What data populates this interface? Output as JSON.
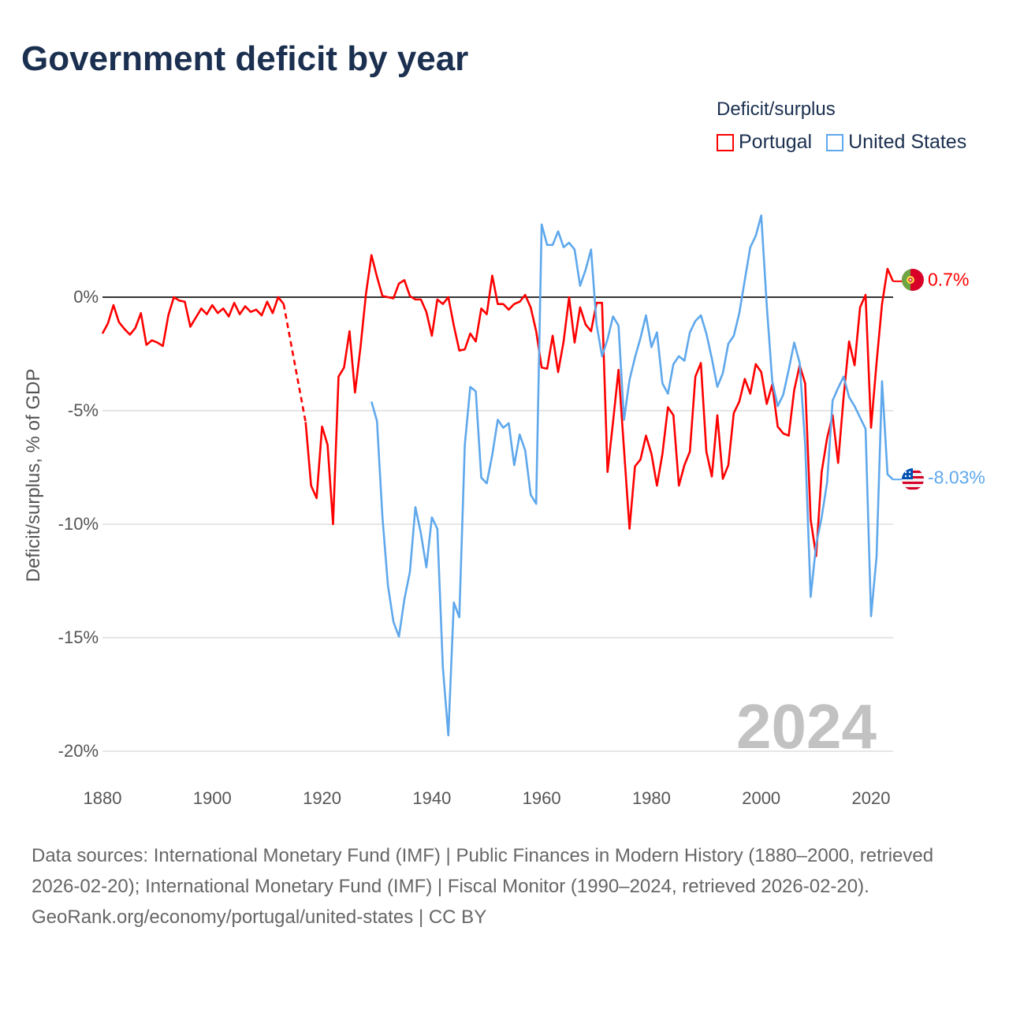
{
  "title": "Government deficit by year",
  "legend": {
    "title": "Deficit/surplus",
    "items": [
      {
        "label": "Portugal",
        "color": "#ff0000"
      },
      {
        "label": "United States",
        "color": "#5fa8ec"
      }
    ]
  },
  "watermark_year": "2024",
  "end_labels": {
    "portugal": "0.7%",
    "united_states": "-8.03%"
  },
  "footer": {
    "sources": "Data sources: International Monetary Fund (IMF) | Public Finances in Modern History (1880–2000, retrieved 2026-02-20); International Monetary Fund (IMF) | Fiscal Monitor (1990–2024, retrieved 2026-02-20).",
    "credit": "GeoRank.org/economy/portugal/united-states | CC BY"
  },
  "chart_data": {
    "type": "line",
    "title": "Government deficit by year",
    "xlabel": "",
    "ylabel": "Deficit/surplus, % of GDP",
    "xlim": [
      1880,
      2024
    ],
    "ylim": [
      -20,
      3.6
    ],
    "x_ticks": [
      1880,
      1900,
      1920,
      1940,
      1960,
      1980,
      2000,
      2020
    ],
    "x_tick_labels": [
      "1880",
      "1900",
      "1920",
      "1940",
      "1960",
      "1980",
      "2000",
      "2020"
    ],
    "y_ticks": [
      0,
      -5,
      -10,
      -15,
      -20
    ],
    "y_tick_labels": [
      "0%",
      "-5%",
      "-10%",
      "-15%",
      "-20%"
    ],
    "grid": true,
    "legend_position": "top-right",
    "series": [
      {
        "name": "Portugal",
        "color": "#ff0000",
        "start_year": 1880,
        "values": [
          -1.6,
          -1.15,
          -0.35,
          -1.1,
          -1.4,
          -1.65,
          -1.35,
          -0.7,
          -2.1,
          -1.9,
          -2.0,
          -2.15,
          -0.8,
          0,
          -0.15,
          -0.2,
          -1.3,
          -0.9,
          -0.5,
          -0.75,
          -0.35,
          -0.7,
          -0.5,
          -0.85,
          -0.25,
          -0.75,
          -0.4,
          -0.65,
          -0.55,
          -0.8,
          -0.2,
          -0.7,
          0,
          -0.3,
          null,
          null,
          null,
          -5.5,
          -8.3,
          -8.85,
          -5.7,
          -6.5,
          -10.0,
          -3.5,
          -3.1,
          -1.5,
          -4.2,
          -2.2,
          0.15,
          1.85,
          0.9,
          0.05,
          0,
          -0.05,
          0.6,
          0.75,
          0.05,
          -0.1,
          -0.1,
          -0.65,
          -1.7,
          -0.1,
          -0.3,
          0,
          -1.25,
          -2.35,
          -2.3,
          -1.6,
          -1.95,
          -0.5,
          -0.75,
          0.95,
          -0.3,
          -0.3,
          -0.55,
          -0.3,
          -0.2,
          0.1,
          -0.45,
          -1.5,
          -3.1,
          -3.15,
          -1.7,
          -3.3,
          -1.95,
          0,
          -2.0,
          -0.45,
          -1.2,
          -1.5,
          -0.25,
          -0.25,
          -7.7,
          -5.5,
          -3.2,
          -6.7,
          -10.2,
          -7.45,
          -7.15,
          -6.1,
          -6.9,
          -8.3,
          -6.9,
          -4.85,
          -5.2,
          -8.3,
          -7.4,
          -6.8,
          -3.5,
          -2.9,
          -6.8,
          -7.9,
          -5.2,
          -8.0,
          -7.4,
          -5.1,
          -4.6,
          -3.6,
          -4.25,
          -2.95,
          -3.3,
          -4.7,
          -3.85,
          -5.7,
          -6.0,
          -6.1,
          -4.1,
          -3.0,
          -3.8,
          -9.8,
          -11.4,
          -7.7,
          -6.2,
          -5.2,
          -7.3,
          -4.4,
          -1.95,
          -3.0,
          -0.45,
          0.1,
          -5.75,
          -2.9,
          -0.3,
          1.25,
          0.7
        ]
      },
      {
        "name": "United States",
        "color": "#5fa8ec",
        "start_year": 1929,
        "values": [
          -4.6,
          -5.45,
          -9.7,
          -12.7,
          -14.3,
          -14.95,
          -13.3,
          -12.1,
          -9.25,
          -10.4,
          -11.9,
          -9.7,
          -10.2,
          -16.3,
          -19.3,
          -13.45,
          -14.1,
          -6.5,
          -3.95,
          -4.15,
          -7.95,
          -8.2,
          -6.95,
          -5.4,
          -5.75,
          -5.55,
          -7.4,
          -6.05,
          -6.75,
          -8.7,
          -9.1,
          3.2,
          2.3,
          2.3,
          2.9,
          2.2,
          2.4,
          2.1,
          0.5,
          1.2,
          2.1,
          -1.2,
          -2.6,
          -1.85,
          -0.85,
          -1.25,
          -5.4,
          -3.65,
          -2.65,
          -1.8,
          -0.8,
          -2.2,
          -1.55,
          -3.8,
          -4.25,
          -2.95,
          -2.6,
          -2.8,
          -1.55,
          -1.05,
          -0.8,
          -1.6,
          -2.7,
          -3.95,
          -3.35,
          -2.05,
          -1.7,
          -0.7,
          0.75,
          2.2,
          2.7,
          3.6,
          -0.35,
          -3.7,
          -4.8,
          -4.3,
          -3.2,
          -2.0,
          -2.9,
          -6.5,
          -13.2,
          -10.9,
          -9.7,
          -8.15,
          -4.55,
          -4.0,
          -3.5,
          -4.4,
          -4.8,
          -5.3,
          -5.8,
          -14.05,
          -11.45,
          -3.7,
          -7.8,
          -8.03
        ]
      }
    ]
  }
}
